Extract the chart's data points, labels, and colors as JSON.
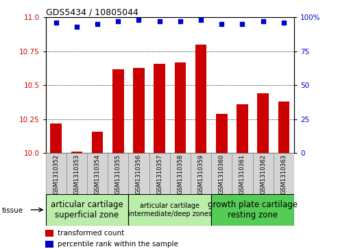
{
  "title": "GDS5434 / 10805044",
  "samples": [
    "GSM1310352",
    "GSM1310353",
    "GSM1310354",
    "GSM1310355",
    "GSM1310356",
    "GSM1310357",
    "GSM1310358",
    "GSM1310359",
    "GSM1310360",
    "GSM1310361",
    "GSM1310362",
    "GSM1310363"
  ],
  "bar_values": [
    10.22,
    10.01,
    10.16,
    10.62,
    10.63,
    10.66,
    10.67,
    10.8,
    10.29,
    10.36,
    10.44,
    10.38
  ],
  "percentile_values": [
    96,
    93,
    95,
    97,
    98,
    97,
    97,
    98,
    95,
    95,
    97,
    96
  ],
  "bar_color": "#cc0000",
  "dot_color": "#0000cc",
  "ylim_left": [
    10.0,
    11.0
  ],
  "ylim_right": [
    0,
    100
  ],
  "yticks_left": [
    10.0,
    10.25,
    10.5,
    10.75,
    11.0
  ],
  "yticks_right": [
    0,
    25,
    50,
    75,
    100
  ],
  "gridlines": [
    10.25,
    10.5,
    10.75
  ],
  "tissue_groups": [
    {
      "label": "articular cartilage\nsuperficial zone",
      "start": 0,
      "end": 3,
      "color": "#bbeeaa",
      "fontsize": 8.5
    },
    {
      "label": "articular cartilage\nintermediate/deep zones",
      "start": 4,
      "end": 7,
      "color": "#bbeeaa",
      "fontsize": 7.0
    },
    {
      "label": "growth plate cartilage\nresting zone",
      "start": 8,
      "end": 11,
      "color": "#55cc55",
      "fontsize": 8.5
    }
  ],
  "tissue_label": "tissue",
  "legend_red": "transformed count",
  "legend_blue": "percentile rank within the sample",
  "bar_width": 0.55,
  "bg_color": "#ffffff",
  "plot_bg_color": "#ffffff",
  "label_bg_color": "#d4d4d4"
}
